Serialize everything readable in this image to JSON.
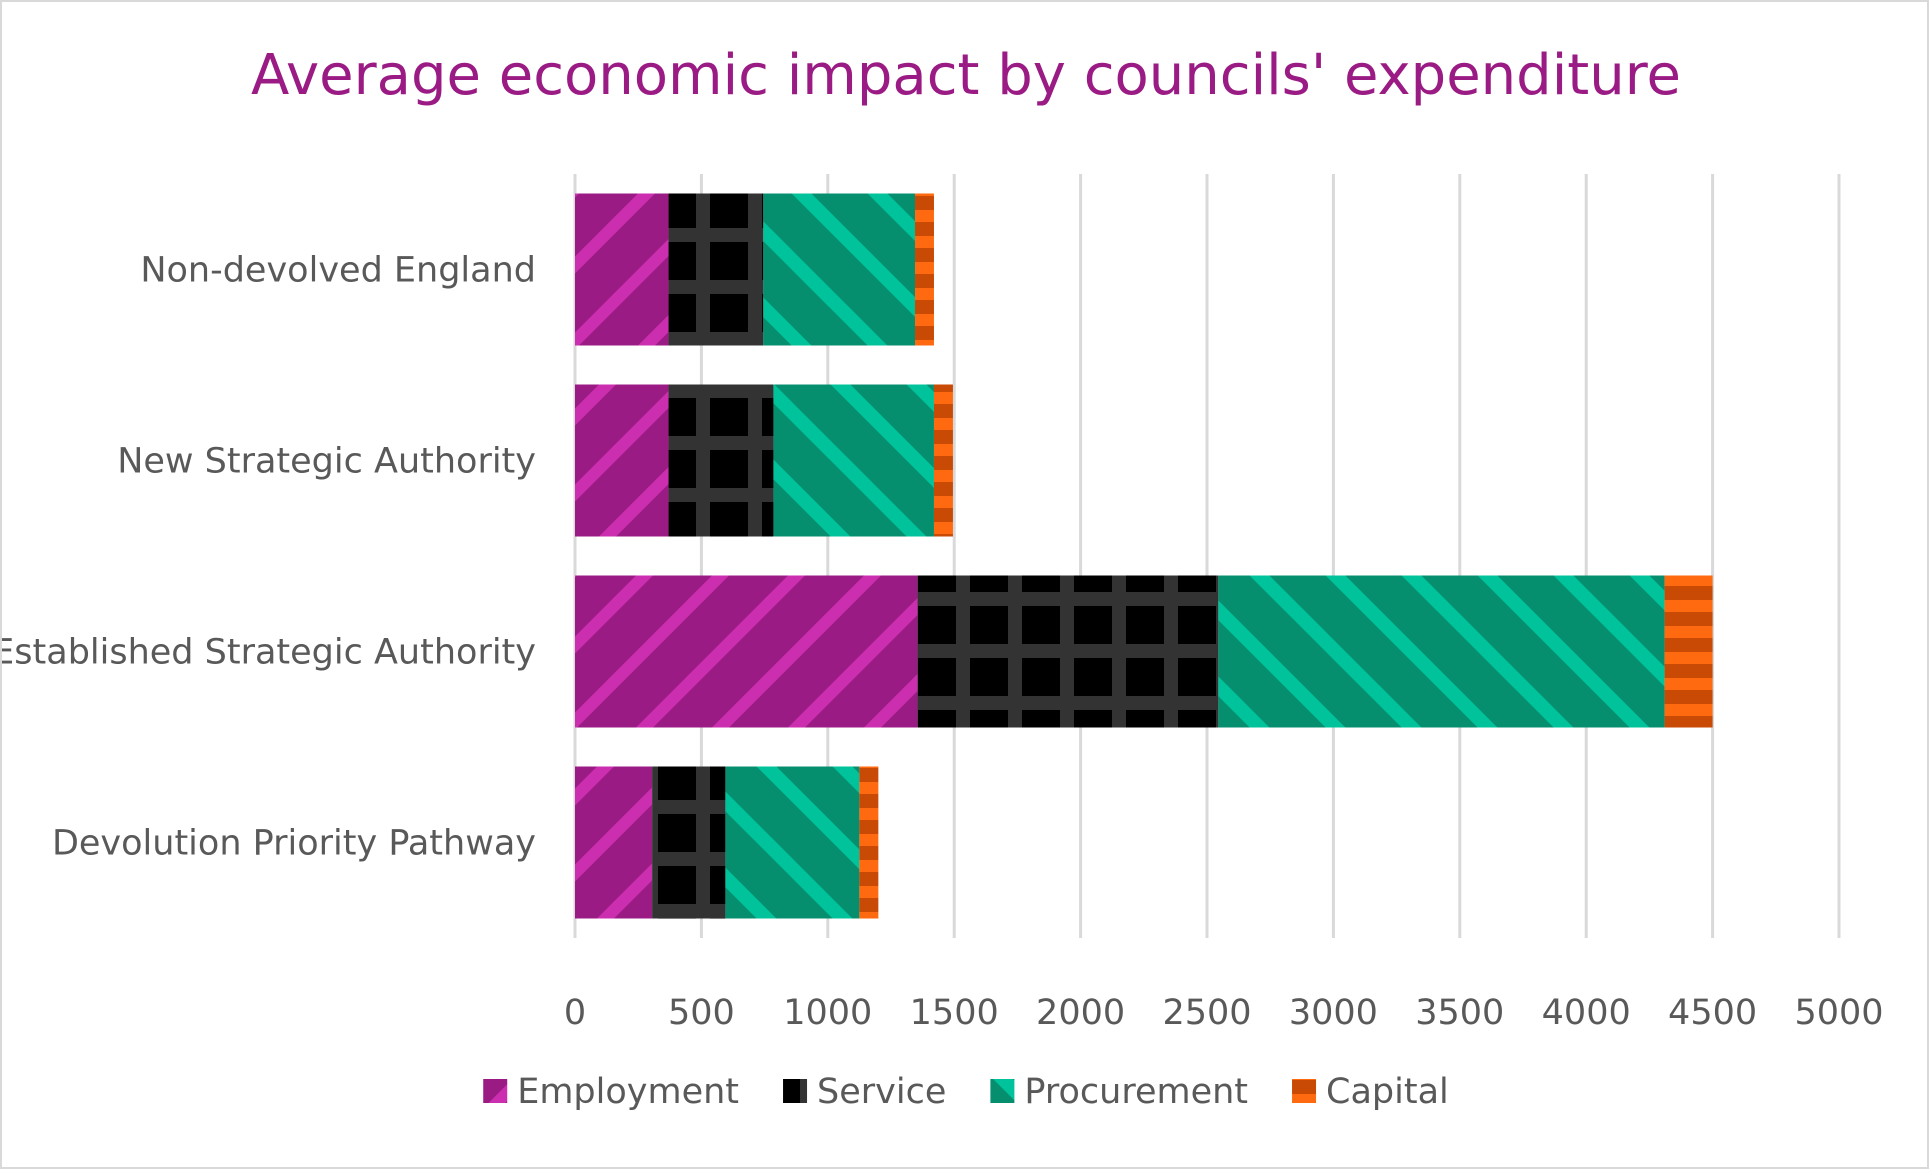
{
  "chart_data": {
    "type": "bar",
    "orientation": "horizontal",
    "stacked": true,
    "title": "Average economic impact by councils' expenditure",
    "categories": [
      "Non-devolved England",
      "New Strategic Authority",
      "Established Strategic Authority",
      "Devolution Priority Pathway"
    ],
    "series": [
      {
        "name": "Employment",
        "values": [
          370,
          370,
          1355,
          305
        ],
        "color": "#9b1b85",
        "pattern": "diagonal-stripes",
        "stripe_color": "#cc2eb0"
      },
      {
        "name": "Service",
        "values": [
          375,
          415,
          1190,
          290
        ],
        "color": "#000000",
        "pattern": "grid",
        "stripe_color": "#333333"
      },
      {
        "name": "Procurement",
        "values": [
          600,
          635,
          1765,
          530
        ],
        "color": "#058f6f",
        "pattern": "diagonal-stripes-reverse",
        "stripe_color": "#00c39b"
      },
      {
        "name": "Capital",
        "values": [
          75,
          75,
          190,
          75
        ],
        "color": "#c84a05",
        "pattern": "horizontal-stripes",
        "stripe_color": "#ff6a10"
      }
    ],
    "xlim": [
      0,
      5000
    ],
    "xticks": [
      0,
      500,
      1000,
      1500,
      2000,
      2500,
      3000,
      3500,
      4000,
      4500,
      5000
    ],
    "grid": "vertical",
    "legend_position": "bottom",
    "xlabel": "",
    "ylabel": ""
  }
}
